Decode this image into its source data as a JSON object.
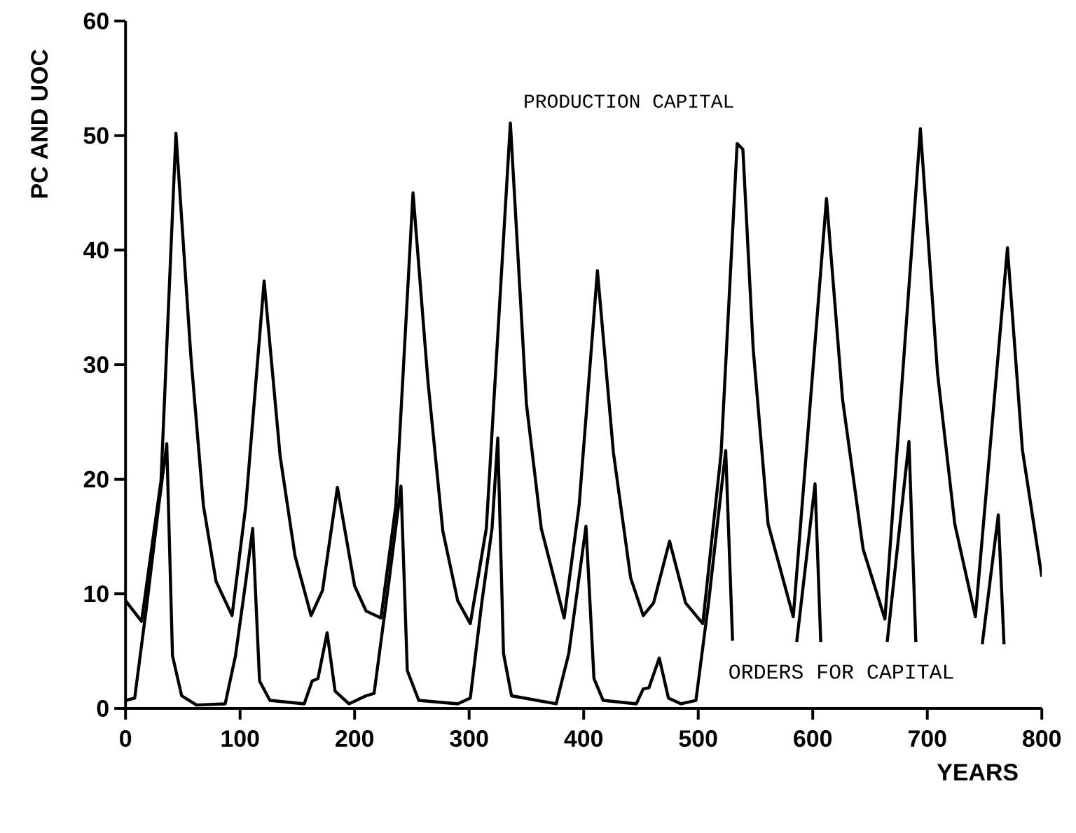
{
  "chart_data": {
    "type": "line",
    "xlabel": "YEARS",
    "ylabel": "PC AND UOC",
    "xlim": [
      0,
      800
    ],
    "ylim": [
      0,
      60
    ],
    "xticks": [
      0,
      100,
      200,
      300,
      400,
      500,
      600,
      700,
      800
    ],
    "yticks": [
      0,
      10,
      20,
      30,
      40,
      50,
      60
    ],
    "grid": false,
    "marker": "none",
    "line_style": "solid",
    "series": [
      {
        "name": "PRODUCTION CAPITAL",
        "color": "#000000",
        "x": [
          0,
          14,
          31,
          44,
          57,
          68,
          79,
          93,
          105,
          121,
          135,
          148,
          162,
          172,
          185,
          200,
          210,
          223,
          236,
          251,
          264,
          277,
          290,
          301,
          315,
          336,
          350,
          363,
          383,
          396,
          412,
          426,
          441,
          452,
          461,
          475,
          489,
          504,
          520,
          534,
          539,
          548,
          561,
          583,
          612,
          626,
          644,
          663,
          694,
          709,
          724,
          742,
          770,
          783,
          800
        ],
        "values": [
          9.4,
          7.6,
          19.9,
          50.2,
          30.8,
          17.7,
          11.1,
          8.1,
          17.7,
          37.3,
          22,
          13.3,
          8.1,
          10.3,
          19.3,
          10.7,
          8.5,
          7.9,
          17.7,
          45,
          28.6,
          15.5,
          9.4,
          7.4,
          15.7,
          51.1,
          26.6,
          15.7,
          7.9,
          17.7,
          38.2,
          22.3,
          11.4,
          8.1,
          9.2,
          14.6,
          9.2,
          7.4,
          22.3,
          49.3,
          48.8,
          31.4,
          16.1,
          8,
          44.5,
          27,
          13.9,
          7.8,
          50.6,
          29.2,
          16.1,
          8,
          40.2,
          22.6,
          11.5
        ]
      },
      {
        "name": "ORDERS FOR CAPITAL",
        "color": "#000000",
        "x": [
          0,
          8,
          18.5,
          29,
          36,
          41,
          49,
          62,
          87,
          96,
          105,
          111,
          117,
          126,
          156,
          163,
          168,
          176,
          183,
          195,
          210,
          217,
          230,
          240.5,
          246,
          256,
          290,
          301,
          311,
          320,
          325,
          330,
          337,
          376,
          387,
          402,
          409,
          417,
          446,
          452,
          457,
          466,
          474,
          485,
          498,
          509,
          524,
          530,
          558,
          586,
          602,
          607,
          636,
          665,
          684,
          690,
          719,
          748,
          762,
          767
        ],
        "values": [
          0.7,
          0.9,
          9,
          17.7,
          23.1,
          4.6,
          1.1,
          0.3,
          0.4,
          4.6,
          11.1,
          15.7,
          2.4,
          0.7,
          0.4,
          2.4,
          2.6,
          6.6,
          1.5,
          0.4,
          1.1,
          1.3,
          11.1,
          19.4,
          3.3,
          0.7,
          0.4,
          0.9,
          9.2,
          15.7,
          23.6,
          4.8,
          1.1,
          0.4,
          4.8,
          15.9,
          2.6,
          0.7,
          0.4,
          1.7,
          1.8,
          4.4,
          0.9,
          0.4,
          0.7,
          9.2,
          22.5,
          5.9,
          null,
          5.8,
          19.6,
          5.8,
          null,
          5.8,
          23.3,
          5.8,
          null,
          5.6,
          16.9,
          5.6
        ]
      }
    ]
  }
}
